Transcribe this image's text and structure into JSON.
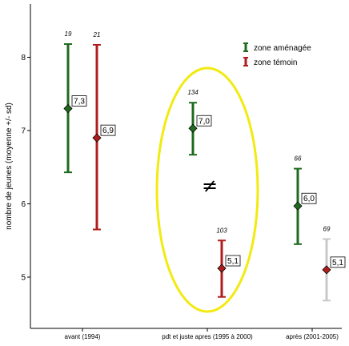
{
  "chart_data": {
    "type": "scatter",
    "ylabel": "nombre de jeunes (moyenne +/- sd)",
    "xlabel": "",
    "ylim": [
      4.5,
      9
    ],
    "yticks": [
      5,
      6,
      7,
      8
    ],
    "categories": [
      "avant (1994)",
      "pdt et juste apres (1995 à 2000)",
      "après (2001-2005)"
    ],
    "series": [
      {
        "name": "zone aménagée",
        "color": "#1e6b1e",
        "points": [
          {
            "category": "avant (1994)",
            "mean": 7.3,
            "label": "7,3",
            "low": 6.43,
            "high": 8.18,
            "n": "19"
          },
          {
            "category": "pdt et juste apres (1995 à 2000)",
            "mean": 7.03,
            "label": "7,0",
            "low": 6.67,
            "high": 7.38,
            "n": "134"
          },
          {
            "category": "après (2001-2005)",
            "mean": 5.97,
            "label": "6,0",
            "low": 5.45,
            "high": 6.48,
            "n": "66"
          }
        ]
      },
      {
        "name": "zone témoin",
        "color": "#b01c1c",
        "points": [
          {
            "category": "avant (1994)",
            "mean": 6.9,
            "label": "6,9",
            "low": 5.65,
            "high": 8.17,
            "n": "21"
          },
          {
            "category": "pdt et juste apres (1995 à 2000)",
            "mean": 5.12,
            "label": "5,1",
            "low": 4.73,
            "high": 5.5,
            "n": "103"
          },
          {
            "category": "après (2001-2005)",
            "mean": 5.1,
            "label": "5,1",
            "low": 4.68,
            "high": 5.52,
            "n": "69",
            "bar_color": "#c8c8c8"
          }
        ]
      }
    ],
    "legend": {
      "placement": "top-right",
      "entries": [
        "zone aménagée",
        "zone témoin"
      ]
    },
    "annotation": {
      "text": "≠",
      "highlight_color": "#f2ea10"
    },
    "grid": false
  }
}
